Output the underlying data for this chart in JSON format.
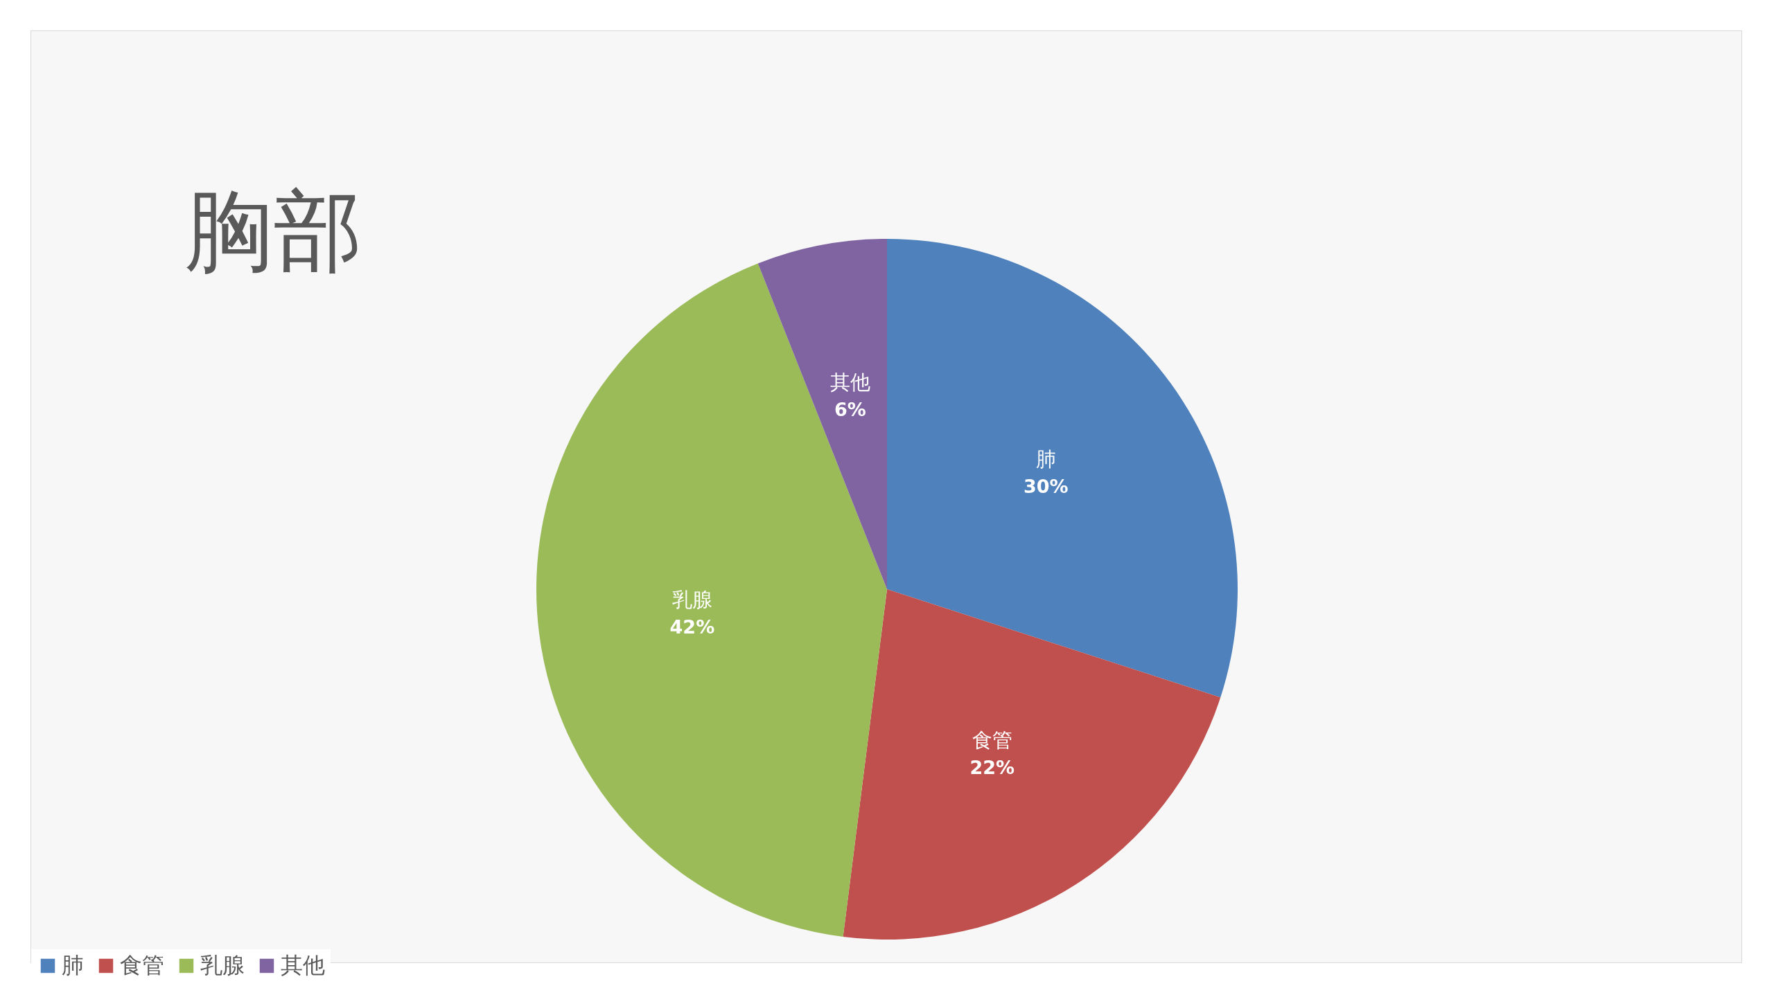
{
  "chart_data": {
    "type": "pie",
    "title": "胸部",
    "categories": [
      "肺",
      "食管",
      "乳腺",
      "其他"
    ],
    "values": [
      30,
      22,
      42,
      6
    ],
    "value_labels": [
      "30%",
      "22%",
      "42%",
      "6%"
    ],
    "colors": [
      "#4f81bd",
      "#c0504d",
      "#9bbb59",
      "#8064a2"
    ],
    "legend": "bottom"
  }
}
